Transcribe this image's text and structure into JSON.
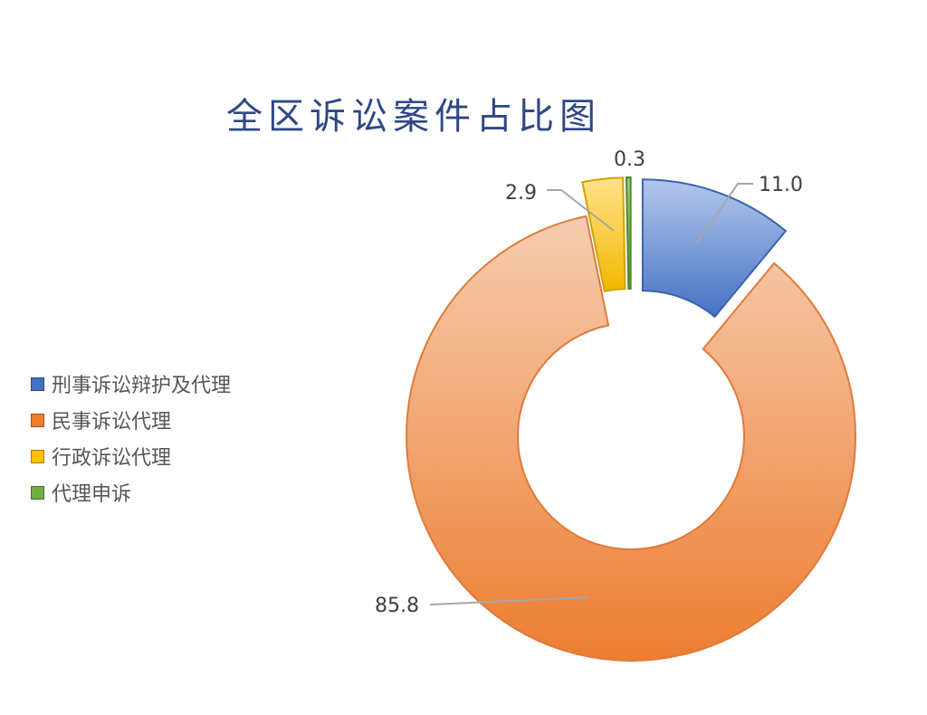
{
  "chart_data": {
    "type": "pie",
    "subtype": "donut",
    "title": "全区诉讼案件占比图",
    "categories": [
      "刑事诉讼辩护及代理",
      "民事诉讼代理",
      "行政诉讼代理",
      "代理申诉"
    ],
    "values": [
      11.0,
      85.8,
      2.9,
      0.3
    ],
    "data_labels": [
      "11.0",
      "85.8",
      "2.9",
      "0.3"
    ],
    "colors": [
      "#4472c4",
      "#ed7d31",
      "#ffc000",
      "#70ad47"
    ],
    "exploded": [
      true,
      false,
      true,
      true
    ],
    "legend_position": "left"
  }
}
